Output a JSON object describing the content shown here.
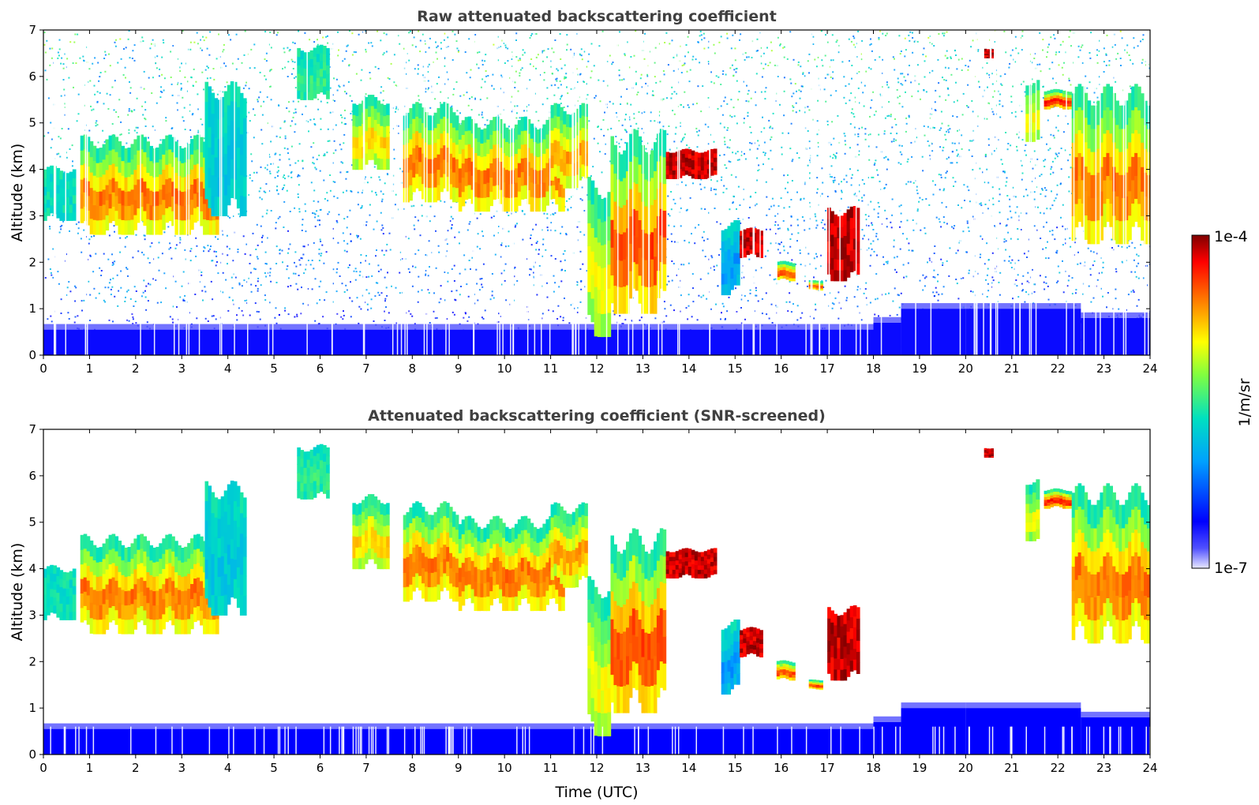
{
  "chart_data": [
    {
      "type": "heatmap",
      "title": "Raw attenuated backscattering coefficient",
      "xlabel": "",
      "ylabel": "Altitude (km)",
      "xlim": [
        0,
        24
      ],
      "ylim": [
        0,
        7
      ],
      "xticks": [
        "0",
        "1",
        "2",
        "3",
        "4",
        "5",
        "6",
        "7",
        "8",
        "9",
        "10",
        "11",
        "12",
        "13",
        "14",
        "15",
        "16",
        "17",
        "18",
        "19",
        "20",
        "21",
        "22",
        "23",
        "24"
      ],
      "yticks": [
        "0",
        "1",
        "2",
        "3",
        "4",
        "5",
        "6",
        "7"
      ],
      "screened": false,
      "noise_fill": "speckle",
      "cloud_layers": [
        {
          "t0": 0.0,
          "t1": 0.7,
          "base": 2.9,
          "top": 4.0,
          "peak": 0.45
        },
        {
          "t0": 0.8,
          "t1": 3.8,
          "base": 2.6,
          "top": 4.6,
          "peak": 0.85
        },
        {
          "t0": 3.5,
          "t1": 4.4,
          "base": 3.0,
          "top": 5.7,
          "peak": 0.4
        },
        {
          "t0": 5.5,
          "t1": 6.2,
          "base": 5.5,
          "top": 6.6,
          "peak": 0.5
        },
        {
          "t0": 6.7,
          "t1": 7.5,
          "base": 4.0,
          "top": 5.5,
          "peak": 0.75
        },
        {
          "t0": 7.8,
          "t1": 9.0,
          "base": 3.3,
          "top": 5.3,
          "peak": 0.85
        },
        {
          "t0": 9.0,
          "t1": 11.3,
          "base": 3.1,
          "top": 5.0,
          "peak": 0.85
        },
        {
          "t0": 11.0,
          "t1": 11.8,
          "base": 3.6,
          "top": 5.3,
          "peak": 0.8
        },
        {
          "t0": 11.8,
          "t1": 12.3,
          "base": 0.4,
          "top": 3.6,
          "peak": 0.7
        },
        {
          "t0": 12.3,
          "t1": 13.5,
          "base": 0.9,
          "top": 4.6,
          "peak": 0.9
        },
        {
          "t0": 13.5,
          "t1": 14.6,
          "base": 3.8,
          "top": 4.4,
          "peak": 1.0
        },
        {
          "t0": 14.7,
          "t1": 15.1,
          "base": 1.3,
          "top": 2.8,
          "peak": 0.3
        },
        {
          "t0": 15.1,
          "t1": 15.6,
          "base": 2.1,
          "top": 2.7,
          "peak": 1.0
        },
        {
          "t0": 15.9,
          "t1": 16.3,
          "base": 1.6,
          "top": 2.0,
          "peak": 0.9
        },
        {
          "t0": 16.6,
          "t1": 16.9,
          "base": 1.4,
          "top": 1.6,
          "peak": 0.9
        },
        {
          "t0": 17.0,
          "t1": 17.7,
          "base": 1.6,
          "top": 3.1,
          "peak": 1.0
        },
        {
          "t0": 20.4,
          "t1": 20.6,
          "base": 6.4,
          "top": 6.6,
          "peak": 1.0
        },
        {
          "t0": 21.3,
          "t1": 21.6,
          "base": 4.6,
          "top": 5.9,
          "peak": 0.7
        },
        {
          "t0": 21.7,
          "t1": 22.3,
          "base": 5.3,
          "top": 5.7,
          "peak": 0.95
        },
        {
          "t0": 22.3,
          "t1": 24.0,
          "base": 2.4,
          "top": 5.6,
          "peak": 0.85
        }
      ],
      "boundary_layer": [
        {
          "t0": 0.0,
          "t1": 18.0,
          "top": 0.55
        },
        {
          "t0": 18.0,
          "t1": 18.6,
          "top": 0.7
        },
        {
          "t0": 18.6,
          "t1": 20.0,
          "top": 1.0
        },
        {
          "t0": 20.0,
          "t1": 22.5,
          "top": 1.0
        },
        {
          "t0": 22.5,
          "t1": 24.0,
          "top": 0.8
        }
      ]
    },
    {
      "type": "heatmap",
      "title": "Attenuated backscattering coefficient (SNR-screened)",
      "xlabel": "Time (UTC)",
      "ylabel": "Altitude (km)",
      "xlim": [
        0,
        24
      ],
      "ylim": [
        0,
        7
      ],
      "xticks": [
        "0",
        "1",
        "2",
        "3",
        "4",
        "5",
        "6",
        "7",
        "8",
        "9",
        "10",
        "11",
        "12",
        "13",
        "14",
        "15",
        "16",
        "17",
        "18",
        "19",
        "20",
        "21",
        "22",
        "23",
        "24"
      ],
      "yticks": [
        "0",
        "1",
        "2",
        "3",
        "4",
        "5",
        "6",
        "7"
      ],
      "screened": true,
      "noise_fill": "none",
      "cloud_layers": "same as raw panel",
      "boundary_layer": "same as raw panel"
    }
  ],
  "colorbar": {
    "label": "1/m/sr",
    "max_label": "1e-4",
    "min_label": "1e-7",
    "scale": "log",
    "range": [
      1e-07,
      0.0001
    ],
    "colormap": [
      "#e8e8ff",
      "#0000ff",
      "#00c8ff",
      "#00ff80",
      "#ffff00",
      "#ff8000",
      "#ff0000",
      "#800000"
    ]
  }
}
